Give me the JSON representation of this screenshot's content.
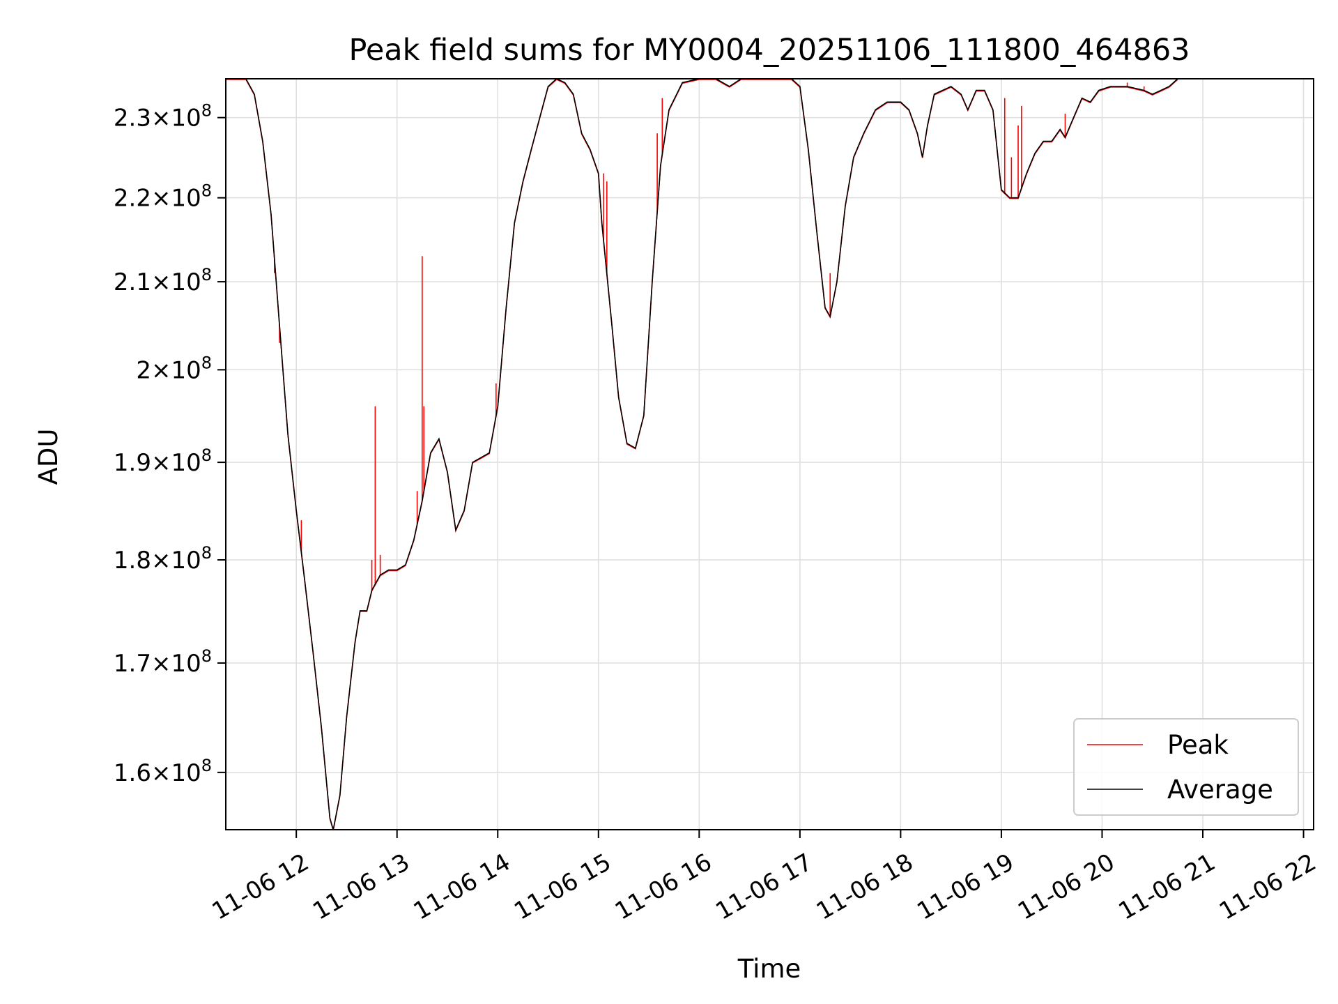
{
  "chart_data": {
    "type": "line",
    "title": "Peak field sums for MY0004_20251106_111800_464863",
    "xlabel": "Time",
    "ylabel": "ADU",
    "y_scale": "log",
    "ylim": [
      155000000,
      235000000
    ],
    "xlim": [
      "2025-11-06T11:18",
      "2025-11-06T22:06"
    ],
    "grid": true,
    "legend": {
      "placement": "lower-right",
      "entries": [
        "Peak",
        "Average"
      ]
    },
    "x_ticks": [
      {
        "t": "2025-11-06T12:00",
        "label": "11-06 12"
      },
      {
        "t": "2025-11-06T13:00",
        "label": "11-06 13"
      },
      {
        "t": "2025-11-06T14:00",
        "label": "11-06 14"
      },
      {
        "t": "2025-11-06T15:00",
        "label": "11-06 15"
      },
      {
        "t": "2025-11-06T16:00",
        "label": "11-06 16"
      },
      {
        "t": "2025-11-06T17:00",
        "label": "11-06 17"
      },
      {
        "t": "2025-11-06T18:00",
        "label": "11-06 18"
      },
      {
        "t": "2025-11-06T19:00",
        "label": "11-06 19"
      },
      {
        "t": "2025-11-06T20:00",
        "label": "11-06 20"
      },
      {
        "t": "2025-11-06T21:00",
        "label": "11-06 21"
      },
      {
        "t": "2025-11-06T22:00",
        "label": "11-06 22"
      }
    ],
    "y_ticks": [
      {
        "v": 160000000,
        "mantissa": "1.6",
        "exp": "8"
      },
      {
        "v": 170000000,
        "mantissa": "1.7",
        "exp": "8"
      },
      {
        "v": 180000000,
        "mantissa": "1.8",
        "exp": "8"
      },
      {
        "v": 190000000,
        "mantissa": "1.9",
        "exp": "8"
      },
      {
        "v": 200000000,
        "mantissa": "2",
        "exp": "8"
      },
      {
        "v": 210000000,
        "mantissa": "2.1",
        "exp": "8"
      },
      {
        "v": 220000000,
        "mantissa": "2.2",
        "exp": "8"
      },
      {
        "v": 230000000,
        "mantissa": "2.3",
        "exp": "8"
      }
    ],
    "series": [
      {
        "name": "Average",
        "color": "#000000",
        "points": [
          [
            "2025-11-06T11:18",
            235000000.0
          ],
          [
            "2025-11-06T11:26",
            235000000.0
          ],
          [
            "2025-11-06T11:30",
            235000000.0
          ],
          [
            "2025-11-06T11:35",
            233000000.0
          ],
          [
            "2025-11-06T11:40",
            227000000.0
          ],
          [
            "2025-11-06T11:45",
            218000000.0
          ],
          [
            "2025-11-06T11:50",
            205000000.0
          ],
          [
            "2025-11-06T11:55",
            193000000.0
          ],
          [
            "2025-11-06T12:00",
            185000000.0
          ],
          [
            "2025-11-06T12:05",
            178000000.0
          ],
          [
            "2025-11-06T12:10",
            171000000.0
          ],
          [
            "2025-11-06T12:15",
            164000000.0
          ],
          [
            "2025-11-06T12:20",
            156000000.0
          ],
          [
            "2025-11-06T12:22",
            155000000.0
          ],
          [
            "2025-11-06T12:26",
            158000000.0
          ],
          [
            "2025-11-06T12:30",
            165000000.0
          ],
          [
            "2025-11-06T12:35",
            172000000.0
          ],
          [
            "2025-11-06T12:38",
            175000000.0
          ],
          [
            "2025-11-06T12:42",
            175000000.0
          ],
          [
            "2025-11-06T12:45",
            177000000.0
          ],
          [
            "2025-11-06T12:50",
            178500000.0
          ],
          [
            "2025-11-06T12:55",
            179000000.0
          ],
          [
            "2025-11-06T13:00",
            179000000.0
          ],
          [
            "2025-11-06T13:05",
            179500000.0
          ],
          [
            "2025-11-06T13:10",
            182000000.0
          ],
          [
            "2025-11-06T13:15",
            186000000.0
          ],
          [
            "2025-11-06T13:20",
            191000000.0
          ],
          [
            "2025-11-06T13:25",
            192500000.0
          ],
          [
            "2025-11-06T13:30",
            189000000.0
          ],
          [
            "2025-11-06T13:35",
            183000000.0
          ],
          [
            "2025-11-06T13:40",
            185000000.0
          ],
          [
            "2025-11-06T13:45",
            190000000.0
          ],
          [
            "2025-11-06T13:50",
            190500000.0
          ],
          [
            "2025-11-06T13:55",
            191000000.0
          ],
          [
            "2025-11-06T14:00",
            196000000.0
          ],
          [
            "2025-11-06T14:05",
            207000000.0
          ],
          [
            "2025-11-06T14:10",
            217000000.0
          ],
          [
            "2025-11-06T14:15",
            222000000.0
          ],
          [
            "2025-11-06T14:20",
            226000000.0
          ],
          [
            "2025-11-06T14:25",
            230000000.0
          ],
          [
            "2025-11-06T14:30",
            234000000.0
          ],
          [
            "2025-11-06T14:35",
            235000000.0
          ],
          [
            "2025-11-06T14:40",
            234500000.0
          ],
          [
            "2025-11-06T14:45",
            233000000.0
          ],
          [
            "2025-11-06T14:50",
            228000000.0
          ],
          [
            "2025-11-06T14:55",
            226000000.0
          ],
          [
            "2025-11-06T15:00",
            223000000.0
          ],
          [
            "2025-11-06T15:02",
            217000000.0
          ],
          [
            "2025-11-06T15:08",
            205000000.0
          ],
          [
            "2025-11-06T15:12",
            197000000.0
          ],
          [
            "2025-11-06T15:17",
            192000000.0
          ],
          [
            "2025-11-06T15:22",
            191500000.0
          ],
          [
            "2025-11-06T15:27",
            195000000.0
          ],
          [
            "2025-11-06T15:32",
            210000000.0
          ],
          [
            "2025-11-06T15:37",
            224000000.0
          ],
          [
            "2025-11-06T15:42",
            231000000.0
          ],
          [
            "2025-11-06T15:50",
            234500000.0
          ],
          [
            "2025-11-06T16:00",
            235000000.0
          ],
          [
            "2025-11-06T16:10",
            235000000.0
          ],
          [
            "2025-11-06T16:18",
            234000000.0
          ],
          [
            "2025-11-06T16:25",
            235000000.0
          ],
          [
            "2025-11-06T16:40",
            235000000.0
          ],
          [
            "2025-11-06T16:55",
            235000000.0
          ],
          [
            "2025-11-06T17:00",
            234000000.0
          ],
          [
            "2025-11-06T17:05",
            226000000.0
          ],
          [
            "2025-11-06T17:10",
            216000000.0
          ],
          [
            "2025-11-06T17:15",
            207000000.0
          ],
          [
            "2025-11-06T17:18",
            206000000.0
          ],
          [
            "2025-11-06T17:22",
            210000000.0
          ],
          [
            "2025-11-06T17:27",
            219000000.0
          ],
          [
            "2025-11-06T17:32",
            225000000.0
          ],
          [
            "2025-11-06T17:38",
            228000000.0
          ],
          [
            "2025-11-06T17:45",
            231000000.0
          ],
          [
            "2025-11-06T17:52",
            232000000.0
          ],
          [
            "2025-11-06T18:00",
            232000000.0
          ],
          [
            "2025-11-06T18:05",
            231000000.0
          ],
          [
            "2025-11-06T18:10",
            228000000.0
          ],
          [
            "2025-11-06T18:13",
            225000000.0
          ],
          [
            "2025-11-06T18:16",
            229000000.0
          ],
          [
            "2025-11-06T18:20",
            233000000.0
          ],
          [
            "2025-11-06T18:30",
            234000000.0
          ],
          [
            "2025-11-06T18:36",
            233000000.0
          ],
          [
            "2025-11-06T18:40",
            231000000.0
          ],
          [
            "2025-11-06T18:45",
            233500000.0
          ],
          [
            "2025-11-06T18:50",
            233500000.0
          ],
          [
            "2025-11-06T18:55",
            231000000.0
          ],
          [
            "2025-11-06T19:00",
            221000000.0
          ],
          [
            "2025-11-06T19:05",
            220000000.0
          ],
          [
            "2025-11-06T19:10",
            220000000.0
          ],
          [
            "2025-11-06T19:15",
            223000000.0
          ],
          [
            "2025-11-06T19:20",
            225500000.0
          ],
          [
            "2025-11-06T19:25",
            227000000.0
          ],
          [
            "2025-11-06T19:30",
            227000000.0
          ],
          [
            "2025-11-06T19:35",
            228500000.0
          ],
          [
            "2025-11-06T19:38",
            227500000.0
          ],
          [
            "2025-11-06T19:43",
            230000000.0
          ],
          [
            "2025-11-06T19:48",
            232500000.0
          ],
          [
            "2025-11-06T19:53",
            232000000.0
          ],
          [
            "2025-11-06T19:58",
            233500000.0
          ],
          [
            "2025-11-06T20:05",
            234000000.0
          ],
          [
            "2025-11-06T20:15",
            234000000.0
          ],
          [
            "2025-11-06T20:25",
            233500000.0
          ],
          [
            "2025-11-06T20:30",
            233000000.0
          ],
          [
            "2025-11-06T20:35",
            233500000.0
          ],
          [
            "2025-11-06T20:40",
            234000000.0
          ],
          [
            "2025-11-06T20:45",
            235000000.0
          ]
        ]
      },
      {
        "name": "Peak",
        "color": "#ff0000",
        "spikes": [
          [
            "2025-11-06T11:47",
            211000000.0
          ],
          [
            "2025-11-06T11:50",
            203000000.0
          ],
          [
            "2025-11-06T12:03",
            184000000.0
          ],
          [
            "2025-11-06T12:45",
            180000000.0
          ],
          [
            "2025-11-06T12:47",
            196000000.0
          ],
          [
            "2025-11-06T12:50",
            180500000.0
          ],
          [
            "2025-11-06T13:12",
            187000000.0
          ],
          [
            "2025-11-06T13:15",
            213000000.0
          ],
          [
            "2025-11-06T13:16",
            196000000.0
          ],
          [
            "2025-11-06T13:59",
            198500000.0
          ],
          [
            "2025-11-06T15:03",
            223000000.0
          ],
          [
            "2025-11-06T15:05",
            222000000.0
          ],
          [
            "2025-11-06T15:35",
            228000000.0
          ],
          [
            "2025-11-06T15:38",
            232500000.0
          ],
          [
            "2025-11-06T17:18",
            211000000.0
          ],
          [
            "2025-11-06T19:02",
            232500000.0
          ],
          [
            "2025-11-06T19:06",
            225000000.0
          ],
          [
            "2025-11-06T19:08",
            220000000.0
          ],
          [
            "2025-11-06T19:10",
            229000000.0
          ],
          [
            "2025-11-06T19:12",
            231500000.0
          ],
          [
            "2025-11-06T19:38",
            230500000.0
          ],
          [
            "2025-11-06T20:15",
            234500000.0
          ],
          [
            "2025-11-06T20:25",
            234000000.0
          ]
        ]
      }
    ]
  }
}
